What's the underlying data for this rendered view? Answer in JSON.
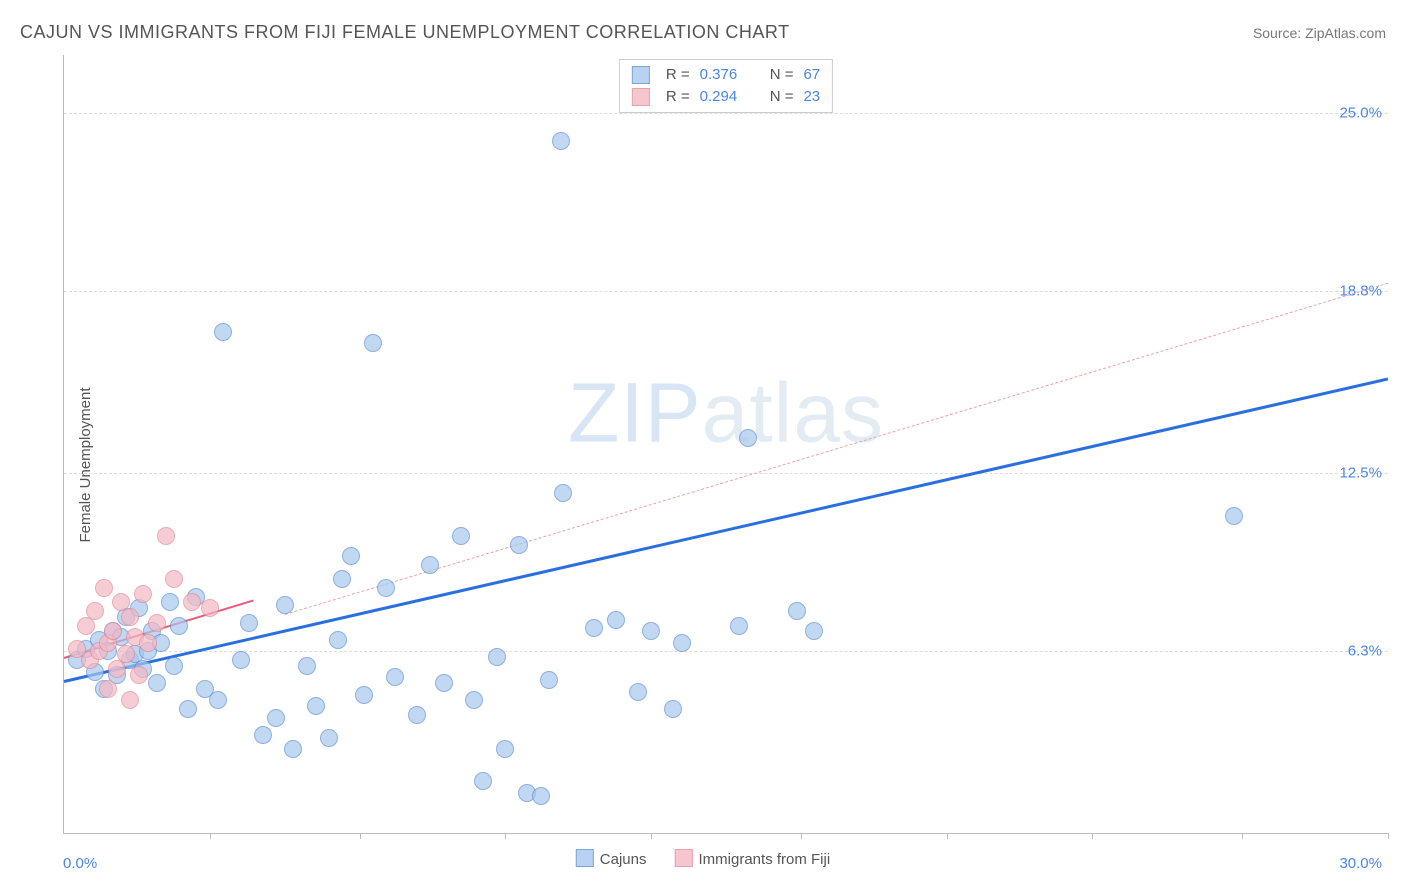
{
  "title": "CAJUN VS IMMIGRANTS FROM FIJI FEMALE UNEMPLOYMENT CORRELATION CHART",
  "source_label": "Source: ",
  "source_name": "ZipAtlas.com",
  "ylabel": "Female Unemployment",
  "watermark_bold": "ZIP",
  "watermark_thin": "atlas",
  "chart": {
    "type": "scatter",
    "background_color": "#ffffff",
    "grid_color": "#dddddd",
    "axis_color": "#bbbbbb",
    "xlim": [
      0,
      30
    ],
    "ylim": [
      0,
      27
    ],
    "xticks": [
      3.3,
      6.7,
      10,
      13.3,
      16.7,
      20,
      23.3,
      26.7,
      30
    ],
    "yticks": [
      {
        "v": 6.3,
        "label": "6.3%"
      },
      {
        "v": 12.5,
        "label": "12.5%"
      },
      {
        "v": 18.8,
        "label": "18.8%"
      },
      {
        "v": 25.0,
        "label": "25.0%"
      }
    ],
    "xmin_label": "0.0%",
    "xmax_label": "30.0%",
    "marker_radius": 8,
    "marker_border_width": 1,
    "marker_fill_opacity": 0.35,
    "series": [
      {
        "name": "Cajuns",
        "color_border": "#5f8ecf",
        "color_fill": "#a8c8ee",
        "R": "0.376",
        "N": "67",
        "trend": {
          "x0": 0,
          "y0": 5.3,
          "x1": 30,
          "y1": 15.8,
          "width": 3,
          "color": "#2a6fdf",
          "dashed": false
        },
        "trend_ghost": {
          "x0": 5,
          "y0": 7.6,
          "x1": 30,
          "y1": 19.1,
          "width": 1,
          "color": "#e9a3a9",
          "dashed": true
        },
        "points": [
          [
            0.3,
            6.0
          ],
          [
            0.5,
            6.4
          ],
          [
            0.7,
            5.6
          ],
          [
            0.8,
            6.7
          ],
          [
            0.9,
            5.0
          ],
          [
            1.0,
            6.3
          ],
          [
            1.1,
            7.0
          ],
          [
            1.2,
            5.5
          ],
          [
            1.3,
            6.8
          ],
          [
            1.4,
            7.5
          ],
          [
            1.5,
            6.0
          ],
          [
            1.6,
            6.2
          ],
          [
            1.7,
            7.8
          ],
          [
            1.8,
            5.7
          ],
          [
            1.9,
            6.3
          ],
          [
            2.0,
            7.0
          ],
          [
            2.1,
            5.2
          ],
          [
            2.2,
            6.6
          ],
          [
            2.4,
            8.0
          ],
          [
            2.5,
            5.8
          ],
          [
            2.6,
            7.2
          ],
          [
            2.8,
            4.3
          ],
          [
            3.0,
            8.2
          ],
          [
            3.2,
            5.0
          ],
          [
            3.5,
            4.6
          ],
          [
            3.6,
            17.4
          ],
          [
            4.0,
            6.0
          ],
          [
            4.5,
            3.4
          ],
          [
            4.8,
            4.0
          ],
          [
            5.0,
            7.9
          ],
          [
            5.2,
            2.9
          ],
          [
            5.5,
            5.8
          ],
          [
            5.7,
            4.4
          ],
          [
            6.0,
            3.3
          ],
          [
            6.3,
            8.8
          ],
          [
            6.5,
            9.6
          ],
          [
            6.8,
            4.8
          ],
          [
            7.0,
            17.0
          ],
          [
            7.3,
            8.5
          ],
          [
            7.5,
            5.4
          ],
          [
            8.0,
            4.1
          ],
          [
            8.3,
            9.3
          ],
          [
            8.6,
            5.2
          ],
          [
            9.0,
            10.3
          ],
          [
            9.3,
            4.6
          ],
          [
            9.5,
            1.8
          ],
          [
            10.0,
            2.9
          ],
          [
            10.3,
            10.0
          ],
          [
            10.5,
            1.4
          ],
          [
            10.8,
            1.3
          ],
          [
            11.0,
            5.3
          ],
          [
            11.3,
            11.8
          ],
          [
            11.27,
            24.0
          ],
          [
            12.0,
            7.1
          ],
          [
            12.5,
            7.4
          ],
          [
            13.0,
            4.9
          ],
          [
            13.3,
            7.0
          ],
          [
            14.0,
            6.6
          ],
          [
            15.5,
            13.7
          ],
          [
            16.6,
            7.7
          ],
          [
            17.0,
            7.0
          ],
          [
            15.3,
            7.2
          ],
          [
            13.8,
            4.3
          ],
          [
            9.8,
            6.1
          ],
          [
            6.2,
            6.7
          ],
          [
            4.2,
            7.3
          ],
          [
            26.5,
            11.0
          ]
        ]
      },
      {
        "name": "Immigrants from Fiji",
        "color_border": "#e28b9a",
        "color_fill": "#f5b8c4",
        "R": "0.294",
        "N": "23",
        "trend": {
          "x0": 0,
          "y0": 6.1,
          "x1": 4.3,
          "y1": 8.1,
          "width": 2,
          "color": "#e85c78",
          "dashed": false
        },
        "points": [
          [
            0.3,
            6.4
          ],
          [
            0.5,
            7.2
          ],
          [
            0.6,
            6.0
          ],
          [
            0.7,
            7.7
          ],
          [
            0.8,
            6.3
          ],
          [
            0.9,
            8.5
          ],
          [
            1.0,
            6.6
          ],
          [
            1.1,
            7.0
          ],
          [
            1.2,
            5.7
          ],
          [
            1.3,
            8.0
          ],
          [
            1.4,
            6.2
          ],
          [
            1.5,
            7.5
          ],
          [
            1.6,
            6.8
          ],
          [
            1.7,
            5.5
          ],
          [
            1.8,
            8.3
          ],
          [
            1.9,
            6.6
          ],
          [
            2.1,
            7.3
          ],
          [
            2.3,
            10.3
          ],
          [
            2.5,
            8.8
          ],
          [
            2.9,
            8.0
          ],
          [
            3.3,
            7.8
          ],
          [
            1.5,
            4.6
          ],
          [
            1.0,
            5.0
          ]
        ]
      }
    ],
    "title_fontsize": 18,
    "label_fontsize": 15,
    "tick_color": "#4a86e8",
    "stat_label_R": "R =",
    "stat_label_N": "N ="
  }
}
